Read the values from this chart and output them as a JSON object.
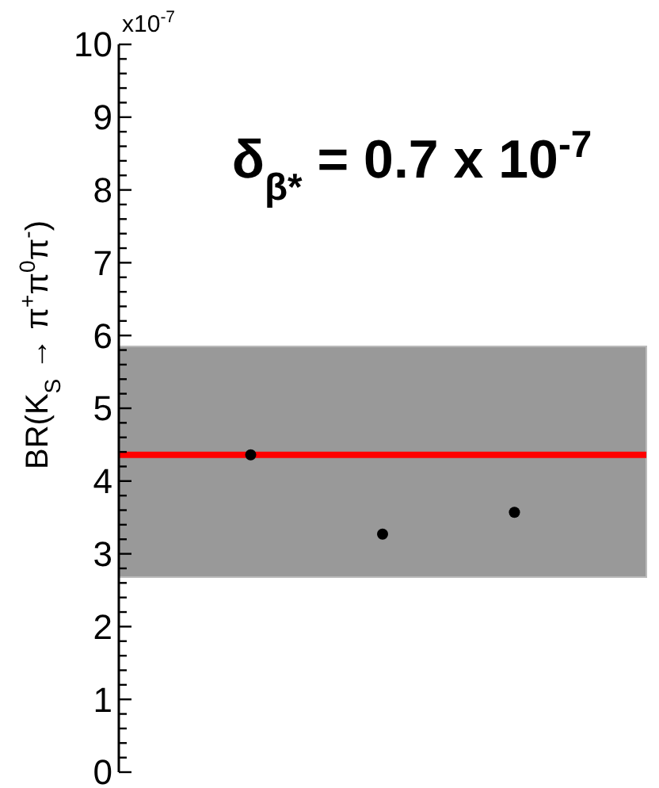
{
  "chart_data": {
    "type": "scatter",
    "title": "δ$_{β*}$ = 0.7 x 10$^{-7}$",
    "ylabel": "BR(K$_{S}$ → π$^{+}$π$^{0}$π$^{-}$)",
    "annotations": [
      "x10$^{-7}$"
    ],
    "categories": [
      null,
      null,
      null
    ],
    "series": [
      {
        "color": "#000000",
        "values": [
          4.36,
          3.27,
          3.57
        ]
      }
    ],
    "marker": "circle",
    "ylim": [
      0,
      10
    ],
    "yticks": [
      0,
      {
        "value": 0.2,
        "label": null
      },
      {
        "value": 0.4,
        "label": null
      },
      {
        "value": 0.6,
        "label": null
      },
      {
        "value": 0.8,
        "label": null
      },
      1,
      {
        "value": 1.2,
        "label": null
      },
      {
        "value": 1.4,
        "label": null
      },
      {
        "value": 1.6,
        "label": null
      },
      {
        "value": 1.8,
        "label": null
      },
      2,
      {
        "value": 2.2,
        "label": null
      },
      {
        "value": 2.4,
        "label": null
      },
      {
        "value": 2.6,
        "label": null
      },
      {
        "value": 2.8,
        "label": null
      },
      3,
      {
        "value": 3.2,
        "label": null
      },
      {
        "value": 3.4,
        "label": null
      },
      {
        "value": 3.6,
        "label": null
      },
      {
        "value": 3.8,
        "label": null
      },
      4,
      {
        "value": 4.2,
        "label": null
      },
      {
        "value": 4.4,
        "label": null
      },
      {
        "value": 4.6,
        "label": null
      },
      {
        "value": 4.8,
        "label": null
      },
      5,
      {
        "value": 5.2,
        "label": null
      },
      {
        "value": 5.4,
        "label": null
      },
      {
        "value": 5.6,
        "label": null
      },
      {
        "value": 5.8,
        "label": null
      },
      6,
      {
        "value": 6.2,
        "label": null
      },
      {
        "value": 6.4,
        "label": null
      },
      {
        "value": 6.6,
        "label": null
      },
      {
        "value": 6.8,
        "label": null
      },
      7,
      {
        "value": 7.2,
        "label": null
      },
      {
        "value": 7.4,
        "label": null
      },
      {
        "value": 7.6,
        "label": null
      },
      {
        "value": 7.8,
        "label": null
      },
      8,
      {
        "value": 8.2,
        "label": null
      },
      {
        "value": 8.4,
        "label": null
      },
      {
        "value": 8.6,
        "label": null
      },
      {
        "value": 8.8,
        "label": null
      },
      9,
      {
        "value": 9.2,
        "label": null
      },
      {
        "value": 9.4,
        "label": null
      },
      {
        "value": 9.6,
        "label": null
      },
      {
        "value": 9.8,
        "label": null
      },
      10
    ],
    "ref_lines": [
      {
        "axis": "y",
        "value": 4.36,
        "color": "#ff0000"
      }
    ],
    "bands": [
      {
        "axis": "y",
        "from": 2.68,
        "to": 5.85,
        "color": "#999999"
      }
    ],
    "tick_labels": "y",
    "grid": false
  }
}
